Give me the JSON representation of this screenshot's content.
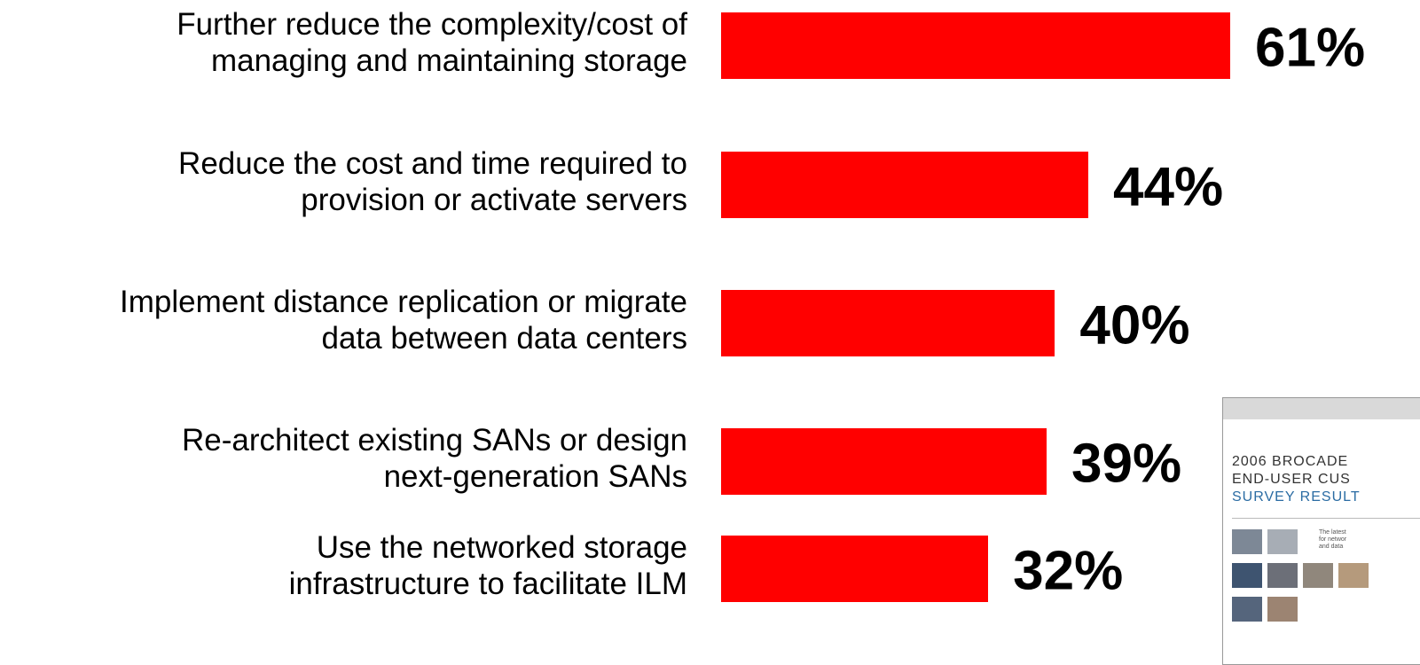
{
  "chart_data": {
    "type": "barh",
    "categories": [
      "Further reduce the complexity/cost of\nmanaging and maintaining storage",
      "Reduce the cost and time required to\nprovision or activate servers",
      "Implement distance replication or migrate\ndata between data centers",
      "Re-architect existing SANs or design\nnext-generation SANs",
      "Use the networked storage\ninfrastructure to facilitate ILM"
    ],
    "values": [
      61,
      44,
      40,
      39,
      32
    ],
    "value_labels": [
      "61%",
      "44%",
      "40%",
      "39%",
      "32%"
    ],
    "color": "#ff0000"
  },
  "inset": {
    "lines": [
      "2006 BROCADE",
      "END-USER CUS",
      "SURVEY RESULT"
    ],
    "blurb": [
      "The latest",
      "for networ",
      "and data"
    ]
  }
}
